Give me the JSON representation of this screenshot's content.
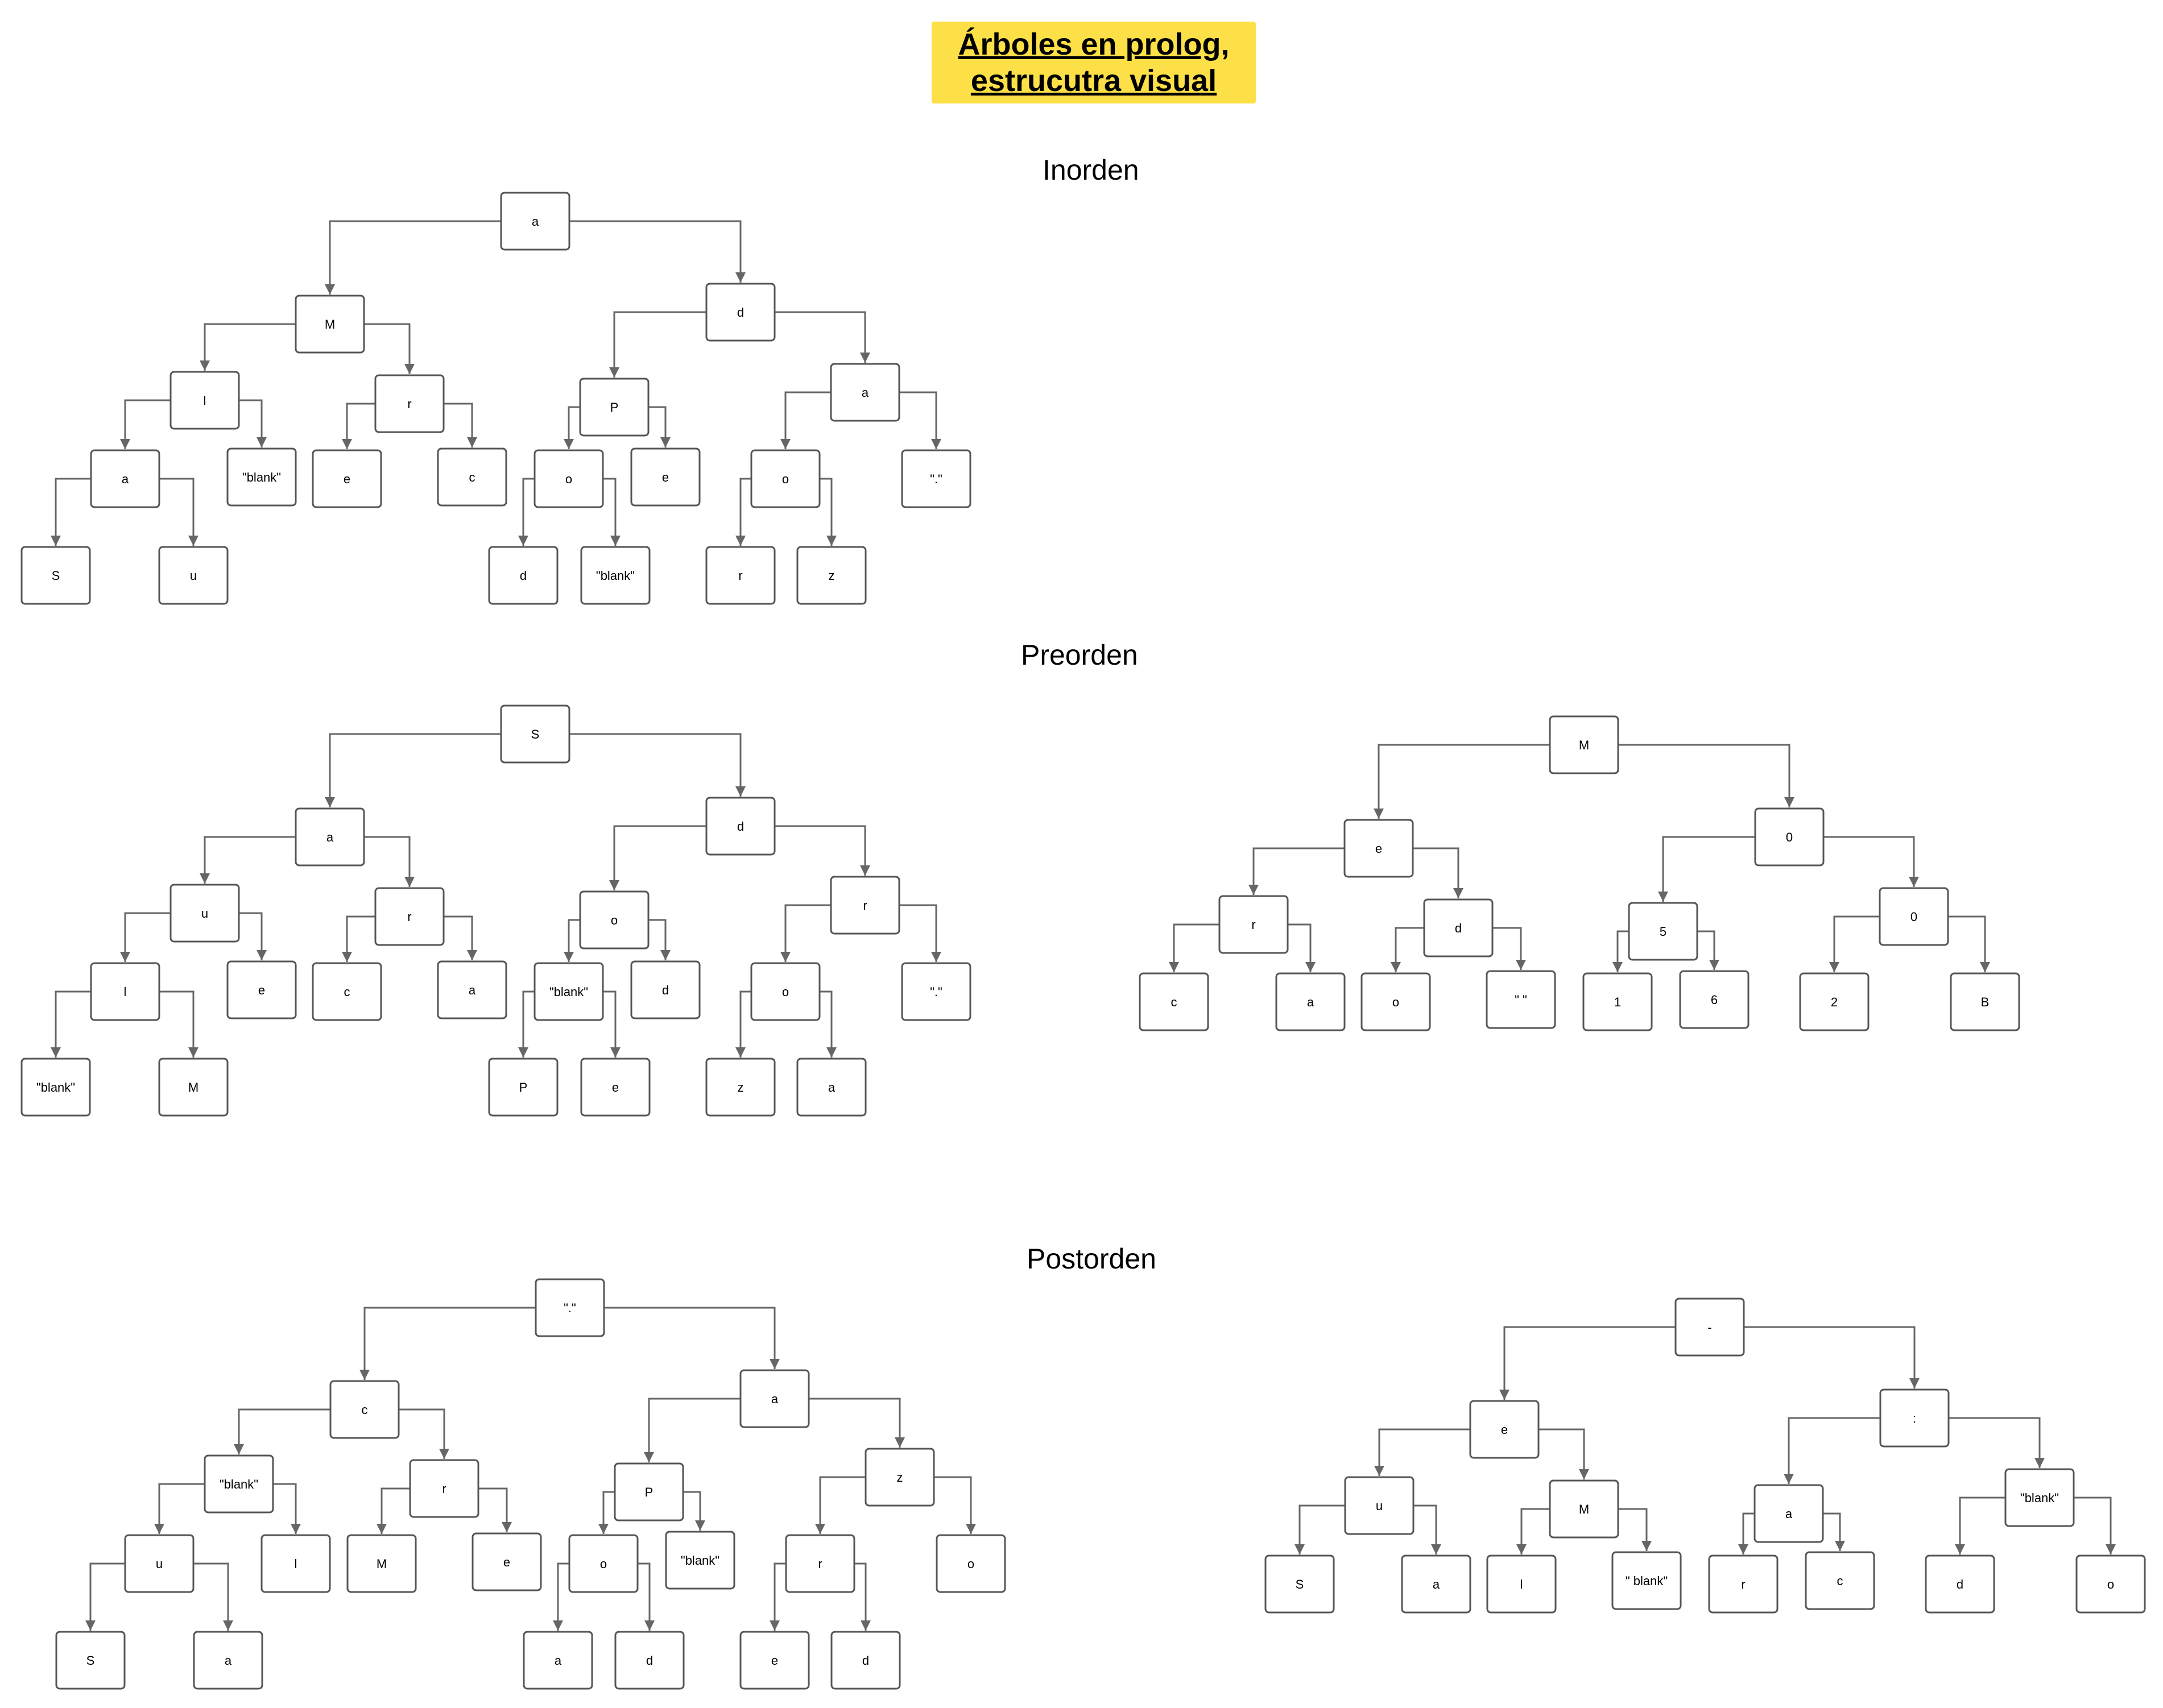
{
  "title": {
    "line1": "Árboles en prolog,",
    "line2": "estrucutra visual"
  },
  "sections": {
    "inorden": "Inorden",
    "preorden": "Preorden",
    "postorden": "Postorden"
  },
  "colors": {
    "title_bg": "#fde047",
    "edge": "#666666",
    "node_border": "#555555",
    "node_fill": "#ffffff"
  },
  "trees": [
    {
      "id": "inorden",
      "labels": [
        "a",
        "M",
        "d",
        "l",
        "r",
        "P",
        "a",
        "a",
        "\"blank\"",
        "e",
        "c",
        "o",
        "e",
        "o",
        "\".\"",
        "S",
        "u",
        "d",
        "\"blank\"",
        "r",
        "z"
      ],
      "edges": [
        [
          0,
          1
        ],
        [
          0,
          2
        ],
        [
          1,
          3
        ],
        [
          1,
          4
        ],
        [
          2,
          5
        ],
        [
          2,
          6
        ],
        [
          3,
          7
        ],
        [
          3,
          8
        ],
        [
          4,
          9
        ],
        [
          4,
          10
        ],
        [
          5,
          11
        ],
        [
          5,
          12
        ],
        [
          6,
          13
        ],
        [
          6,
          14
        ],
        [
          7,
          15
        ],
        [
          7,
          16
        ],
        [
          11,
          17
        ],
        [
          11,
          18
        ],
        [
          13,
          19
        ],
        [
          13,
          20
        ]
      ]
    },
    {
      "id": "preorden",
      "labels": [
        "S",
        "a",
        "d",
        "u",
        "r",
        "o",
        "r",
        "l",
        "e",
        "c",
        "a",
        "\"blank\"",
        "d",
        "o",
        "\".\"",
        "\"blank\"",
        "M",
        "P",
        "e",
        "z",
        "a"
      ],
      "edges": [
        [
          0,
          1
        ],
        [
          0,
          2
        ],
        [
          1,
          3
        ],
        [
          1,
          4
        ],
        [
          2,
          5
        ],
        [
          2,
          6
        ],
        [
          3,
          7
        ],
        [
          3,
          8
        ],
        [
          4,
          9
        ],
        [
          4,
          10
        ],
        [
          5,
          11
        ],
        [
          5,
          12
        ],
        [
          6,
          13
        ],
        [
          6,
          14
        ],
        [
          7,
          15
        ],
        [
          7,
          16
        ],
        [
          11,
          17
        ],
        [
          11,
          18
        ],
        [
          13,
          19
        ],
        [
          13,
          20
        ]
      ]
    },
    {
      "id": "preorden-2",
      "labels": [
        "M",
        "e",
        "0",
        "r",
        "d",
        "5",
        "0",
        "c",
        "a",
        "o",
        "\" \"",
        "1",
        "6",
        "2",
        "B"
      ],
      "edges": [
        [
          0,
          1
        ],
        [
          0,
          2
        ],
        [
          1,
          3
        ],
        [
          1,
          4
        ],
        [
          2,
          5
        ],
        [
          2,
          6
        ],
        [
          3,
          7
        ],
        [
          3,
          8
        ],
        [
          4,
          9
        ],
        [
          4,
          10
        ],
        [
          5,
          11
        ],
        [
          5,
          12
        ],
        [
          6,
          13
        ],
        [
          6,
          14
        ]
      ]
    },
    {
      "id": "postorden",
      "labels": [
        "\".\"",
        "c",
        "a",
        "\"blank\"",
        "r",
        "P",
        "z",
        "u",
        "l",
        "M",
        "e",
        "o",
        "\"blank\"",
        "r",
        "o",
        "S",
        "a",
        "a",
        "d",
        "e",
        "d"
      ],
      "edges": [
        [
          0,
          1
        ],
        [
          0,
          2
        ],
        [
          1,
          3
        ],
        [
          1,
          4
        ],
        [
          2,
          5
        ],
        [
          2,
          6
        ],
        [
          3,
          7
        ],
        [
          3,
          8
        ],
        [
          4,
          9
        ],
        [
          4,
          10
        ],
        [
          5,
          11
        ],
        [
          5,
          12
        ],
        [
          6,
          13
        ],
        [
          6,
          14
        ],
        [
          7,
          15
        ],
        [
          7,
          16
        ],
        [
          11,
          17
        ],
        [
          11,
          18
        ],
        [
          13,
          19
        ],
        [
          13,
          20
        ]
      ]
    },
    {
      "id": "postorden-2",
      "labels": [
        "-",
        "e",
        ":",
        "u",
        "M",
        "a",
        "\"blank\"",
        "S",
        "a",
        "l",
        "\" blank\"",
        "r",
        "c",
        "d",
        "o"
      ],
      "edges": [
        [
          0,
          1
        ],
        [
          0,
          2
        ],
        [
          1,
          3
        ],
        [
          1,
          4
        ],
        [
          2,
          5
        ],
        [
          2,
          6
        ],
        [
          3,
          7
        ],
        [
          3,
          8
        ],
        [
          4,
          9
        ],
        [
          4,
          10
        ],
        [
          5,
          11
        ],
        [
          5,
          12
        ],
        [
          6,
          13
        ],
        [
          6,
          14
        ]
      ]
    }
  ]
}
